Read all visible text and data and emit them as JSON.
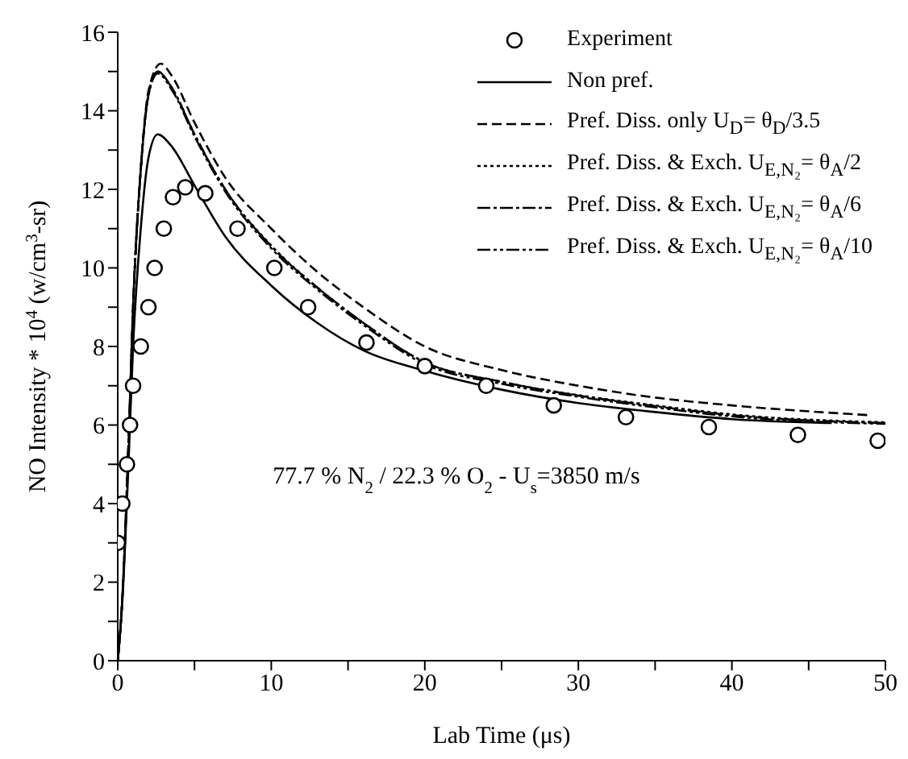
{
  "chart_data": {
    "type": "line",
    "xlabel": "Lab Time (μs)",
    "ylabel": "NO Intensity * 10$^{4}$ (w/cm$^{3}$-sr)",
    "annotations": [
      "77.7 % N$_{2}$ / 22.3 % O$_{2}$ - U$_{s}$=3850 m/s"
    ],
    "xlim": [
      0,
      50
    ],
    "ylim": [
      0,
      16
    ],
    "xticks": [
      0,
      {
        "value": 5,
        "label": null
      },
      10,
      {
        "value": 15,
        "label": null
      },
      20,
      {
        "value": 25,
        "label": null
      },
      30,
      {
        "value": 35,
        "label": null
      },
      40,
      {
        "value": 45,
        "label": null
      },
      50
    ],
    "yticks": [
      0,
      {
        "value": 1,
        "label": null
      },
      2,
      {
        "value": 3,
        "label": null
      },
      4,
      {
        "value": 5,
        "label": null
      },
      6,
      {
        "value": 7,
        "label": null
      },
      8,
      {
        "value": 9,
        "label": null
      },
      10,
      {
        "value": 11,
        "label": null
      },
      12,
      {
        "value": 13,
        "label": null
      },
      14,
      {
        "value": 15,
        "label": null
      },
      16
    ],
    "grid": false,
    "legend": "top right",
    "series": [
      {
        "name": "Experiment",
        "type": "scatter",
        "marker": "circle",
        "color": "#000000",
        "x": [
          0,
          0.3,
          0.6,
          0.8,
          1.0,
          1.5,
          2.0,
          2.4,
          3.0,
          3.6,
          4.4,
          5.7,
          7.8,
          10.2,
          12.4,
          16.2,
          20,
          24,
          28.4,
          33.1,
          38.5,
          44.3,
          49.5
        ],
        "values": [
          3,
          4,
          5,
          6,
          7,
          8,
          9,
          10,
          11,
          11.8,
          12.05,
          11.9,
          11,
          10,
          9,
          8.1,
          7.5,
          7,
          6.5,
          6.2,
          5.95,
          5.75,
          5.6
        ]
      },
      {
        "name": "Non pref.",
        "line_style": "solid",
        "color": "#000000",
        "x": [
          0,
          0.3,
          0.7,
          1.0,
          1.5,
          2.0,
          2.6,
          3.5,
          5,
          7,
          10,
          13,
          16,
          20,
          25,
          30,
          35,
          40,
          46.5
        ],
        "values": [
          0,
          1.5,
          5,
          8,
          11,
          12.8,
          13.4,
          13.1,
          12.1,
          10.8,
          9.55,
          8.6,
          7.9,
          7.38,
          6.9,
          6.56,
          6.33,
          6.15,
          6.05
        ]
      },
      {
        "name": "Pref. Diss. only  U$_{D}$= θ$_{D}$/3.5",
        "line_style": "dashed",
        "color": "#000000",
        "x": [
          0,
          0.3,
          0.7,
          1.0,
          1.5,
          2.0,
          2.8,
          3.5,
          5,
          7,
          10,
          13,
          16,
          20,
          25,
          30,
          35,
          40,
          49
        ],
        "values": [
          0,
          1.6,
          5.5,
          9,
          12.5,
          14.5,
          15.2,
          14.9,
          13.7,
          12.3,
          11.0,
          9.9,
          9.0,
          8.0,
          7.4,
          7.0,
          6.7,
          6.5,
          6.25
        ]
      },
      {
        "name": "Pref. Diss. & Exch.  U$_{E,N₂}$= θ$_{A}$/2",
        "line_style": "dotted",
        "color": "#000000",
        "x": [
          0,
          0.3,
          0.7,
          1.0,
          1.5,
          2.0,
          2.6,
          3.5,
          5,
          7,
          10,
          13,
          16,
          20,
          25,
          30,
          35,
          40,
          50
        ],
        "values": [
          0,
          1.6,
          5.5,
          9,
          12.5,
          14.4,
          15.0,
          14.6,
          13.4,
          12.0,
          10.57,
          9.5,
          8.6,
          7.6,
          7.1,
          6.76,
          6.5,
          6.27,
          6.07
        ]
      },
      {
        "name": "Pref. Diss. & Exch.  U$_{E,N₂}$= θ$_{A}$/6",
        "line_style": "dashdot",
        "color": "#000000",
        "x": [
          0,
          0.3,
          0.7,
          1.0,
          1.5,
          2.0,
          2.6,
          3.5,
          5,
          7,
          10,
          13,
          16,
          20,
          25,
          30,
          35,
          40,
          50
        ],
        "values": [
          0,
          1.6,
          5.5,
          9,
          12.5,
          14.4,
          15.0,
          14.6,
          13.4,
          12.0,
          10.55,
          9.5,
          8.6,
          7.6,
          7.1,
          6.75,
          6.48,
          6.25,
          6.05
        ]
      },
      {
        "name": "Pref. Diss. & Exch.  U$_{E,N₂}$= θ$_{A}$/10",
        "line_style": "dashdotdot",
        "color": "#000000",
        "x": [
          0,
          0.3,
          0.7,
          1.0,
          1.5,
          2.0,
          2.6,
          3.5,
          5,
          7,
          10,
          13,
          16,
          20,
          25,
          30,
          35,
          40,
          50
        ],
        "values": [
          0,
          1.6,
          5.5,
          9,
          12.5,
          14.4,
          14.95,
          14.55,
          13.35,
          11.95,
          10.5,
          9.45,
          8.55,
          7.55,
          7.05,
          6.72,
          6.45,
          6.22,
          6.03
        ]
      }
    ]
  }
}
